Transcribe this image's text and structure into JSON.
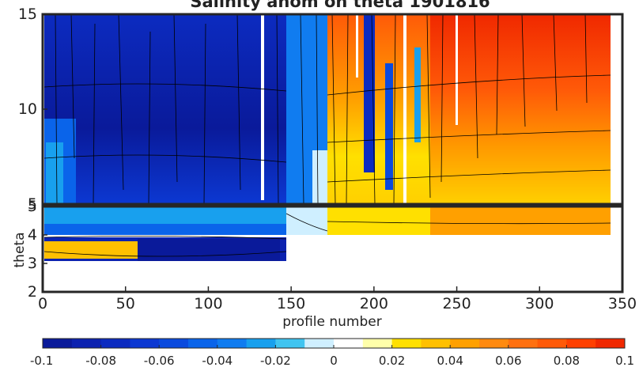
{
  "chart_data": {
    "type": "heatmap",
    "title": "Salinity anom on theta    1901816",
    "xlabel": "profile number",
    "ylabel": "theta",
    "xlim": [
      0,
      350
    ],
    "x_ticks": [
      0,
      50,
      100,
      150,
      200,
      250,
      300,
      350
    ],
    "ylim_lower_panel": [
      2,
      5
    ],
    "y_ticks_lower_panel": [
      2,
      3,
      4,
      5
    ],
    "ylim_upper_panel": [
      5,
      15
    ],
    "y_ticks_upper_panel": [
      5,
      10,
      15
    ],
    "colorbar": {
      "min": -0.1,
      "max": 0.1,
      "ticks": [
        "-0.1",
        "-0.08",
        "-0.06",
        "-0.04",
        "-0.02",
        "0",
        "0.02",
        "0.04",
        "0.06",
        "0.08",
        "0.1"
      ],
      "levels": [
        "#0a1a9a",
        "#0c22b0",
        "#0c2bc0",
        "#0c38d2",
        "#0a4ade",
        "#0a64ea",
        "#107cf0",
        "#18a0ee",
        "#40c4f0",
        "#cfefff",
        "#ffffff",
        "#ffffaa",
        "#ffe000",
        "#ffc000",
        "#ffa000",
        "#ff8a10",
        "#ff7010",
        "#ff5a08",
        "#ff4000",
        "#f02800"
      ]
    },
    "regions": [
      {
        "profiles": [
          0,
          145
        ],
        "theta_range": [
          3.0,
          15
        ],
        "anomaly": -0.08
      },
      {
        "profiles": [
          145,
          170
        ],
        "theta_range": [
          4.3,
          15
        ],
        "anomaly": -0.03
      },
      {
        "profiles": [
          170,
          200
        ],
        "theta_range": [
          4.0,
          15
        ],
        "anomaly": 0.02
      },
      {
        "profiles": [
          200,
          260
        ],
        "theta_range": [
          4.0,
          15
        ],
        "anomaly": 0.05
      },
      {
        "profiles": [
          260,
          340
        ],
        "theta_range": [
          4.0,
          15
        ],
        "anomaly": 0.08
      }
    ]
  }
}
